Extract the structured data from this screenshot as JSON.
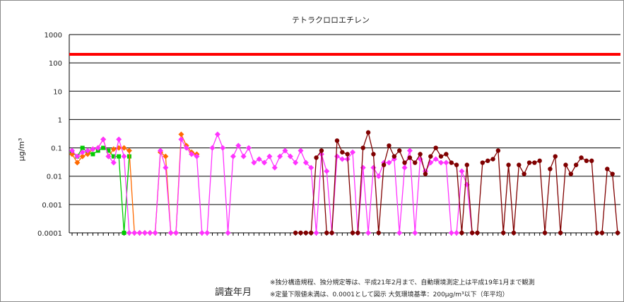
{
  "chart_data": {
    "type": "line",
    "title": "テトラクロロエチレン",
    "xlabel": "調査年月",
    "ylabel": "μg/m³",
    "y_scale": "log",
    "ylim": [
      0.0001,
      1000
    ],
    "y_ticks": [
      {
        "value": 0.0001,
        "label": "0.0001"
      },
      {
        "value": 0.001,
        "label": "0.001"
      },
      {
        "value": 0.01,
        "label": "0.01"
      },
      {
        "value": 0.1,
        "label": "0.1"
      },
      {
        "value": 1,
        "label": "1"
      },
      {
        "value": 10,
        "label": "10"
      },
      {
        "value": 100,
        "label": "100"
      },
      {
        "value": 1000,
        "label": "1000"
      }
    ],
    "grid": true,
    "reference_line": {
      "value": 200,
      "color": "#ff0000"
    },
    "n_points": 106,
    "series": [
      {
        "color": "#00cc00",
        "marker": "square",
        "values": [
          0.07,
          0.05,
          0.1,
          0.07,
          0.06,
          0.08,
          0.1,
          0.08,
          0.05,
          0.05,
          0.0001,
          0.05
        ]
      },
      {
        "color": "#ff6a00",
        "marker": "diamond",
        "values": [
          0.06,
          0.03,
          0.05,
          0.06,
          0.09,
          0.1,
          0.2,
          0.05,
          0.09,
          0.1,
          0.1,
          0.08,
          0.0001,
          0.0001,
          0.0001,
          0.0001,
          0.0001,
          0.07,
          0.05,
          0.0001,
          0.0001,
          0.3,
          0.12,
          0.07,
          0.06
        ]
      },
      {
        "color": "#ff33ff",
        "marker": "diamond",
        "values": [
          0.08,
          0.05,
          0.07,
          0.08,
          0.09,
          0.1,
          0.2,
          0.05,
          0.03,
          0.2,
          0.05,
          0.0001,
          0.0001,
          0.0001,
          0.0001,
          0.0001,
          0.0001,
          0.08,
          0.02,
          0.0001,
          0.0001,
          0.2,
          0.1,
          0.06,
          0.05,
          0.0001,
          0.0001,
          0.1,
          0.3,
          0.1,
          0.0001,
          0.05,
          0.12,
          0.05,
          0.1,
          0.03,
          0.04,
          0.03,
          0.05,
          0.02,
          0.05,
          0.08,
          0.05,
          0.03,
          0.08,
          0.03,
          0.02,
          0.0001,
          0.06,
          0.015,
          0.0001,
          0.05,
          0.04,
          0.04,
          0.07,
          0.0001,
          0.02,
          0.0001,
          0.02,
          0.01,
          0.03,
          0.03,
          0.04,
          0.0001,
          0.02,
          0.08,
          0.0001,
          0.04,
          0.015,
          0.03,
          0.04,
          0.03,
          0.03,
          0.0001,
          0.0001,
          0.015,
          0.005,
          0.0001
        ]
      },
      {
        "color": "#800000",
        "marker": "circle",
        "values": [
          0.0001,
          0.0001,
          0.0001,
          0.0001,
          0.045,
          0.08,
          0.0001,
          0.0001,
          0.18,
          0.07,
          0.06,
          0.0001,
          0.0001,
          0.1,
          0.35,
          0.06,
          0.0001,
          0.025,
          0.12,
          0.05,
          0.08,
          0.03,
          0.045,
          0.03,
          0.06,
          0.012,
          0.05,
          0.1,
          0.05,
          0.06,
          0.03,
          0.025,
          0.0001,
          0.025,
          0.0001,
          0.0001,
          0.03,
          0.035,
          0.04,
          0.08,
          0.0001,
          0.025,
          0.0001,
          0.025,
          0.012,
          0.03,
          0.03,
          0.035,
          0.0001,
          0.018,
          0.05,
          0.0001,
          0.025,
          0.012,
          0.025,
          0.045,
          0.035,
          0.035,
          0.0001,
          0.0001,
          0.018,
          0.012,
          0.0001
        ],
        "start_index": 43
      }
    ],
    "notes": [
      "※独分構造規程、独分規定等は、平成21年2月まで、自動環境測定上は平成19年1月まで観測",
      "※定量下限値未満は、0.0001として図示 大気環境基準：200μg/m³以下（年平均）"
    ]
  }
}
